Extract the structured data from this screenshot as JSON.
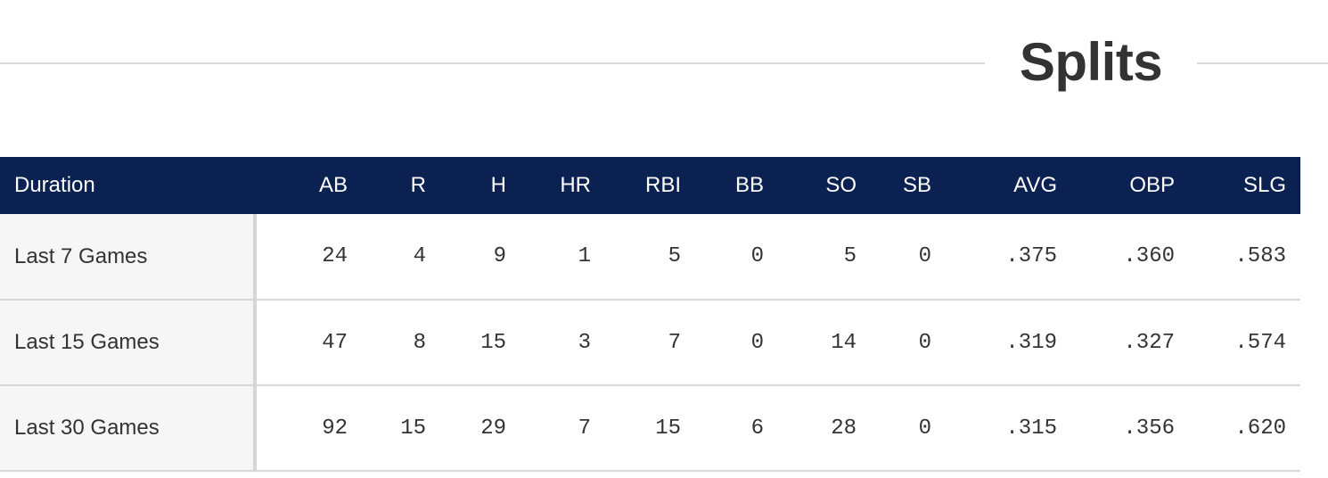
{
  "section": {
    "title": "Splits"
  },
  "table": {
    "headers": [
      "Duration",
      "AB",
      "R",
      "H",
      "HR",
      "RBI",
      "BB",
      "SO",
      "SB",
      "AVG",
      "OBP",
      "SLG"
    ],
    "rows": [
      [
        "Last 7 Games",
        "24",
        "4",
        "9",
        "1",
        "5",
        "0",
        "5",
        "0",
        ".375",
        ".360",
        ".583"
      ],
      [
        "Last 15 Games",
        "47",
        "8",
        "15",
        "3",
        "7",
        "0",
        "14",
        "0",
        ".319",
        ".327",
        ".574"
      ],
      [
        "Last 30 Games",
        "92",
        "15",
        "29",
        "7",
        "15",
        "6",
        "28",
        "0",
        ".315",
        ".356",
        ".620"
      ]
    ]
  },
  "colors": {
    "header_background": "#0b2151",
    "header_text": "#ffffff",
    "duration_cell_background": "#f6f6f6",
    "rule": "#d9d9d9",
    "text": "#333333"
  }
}
